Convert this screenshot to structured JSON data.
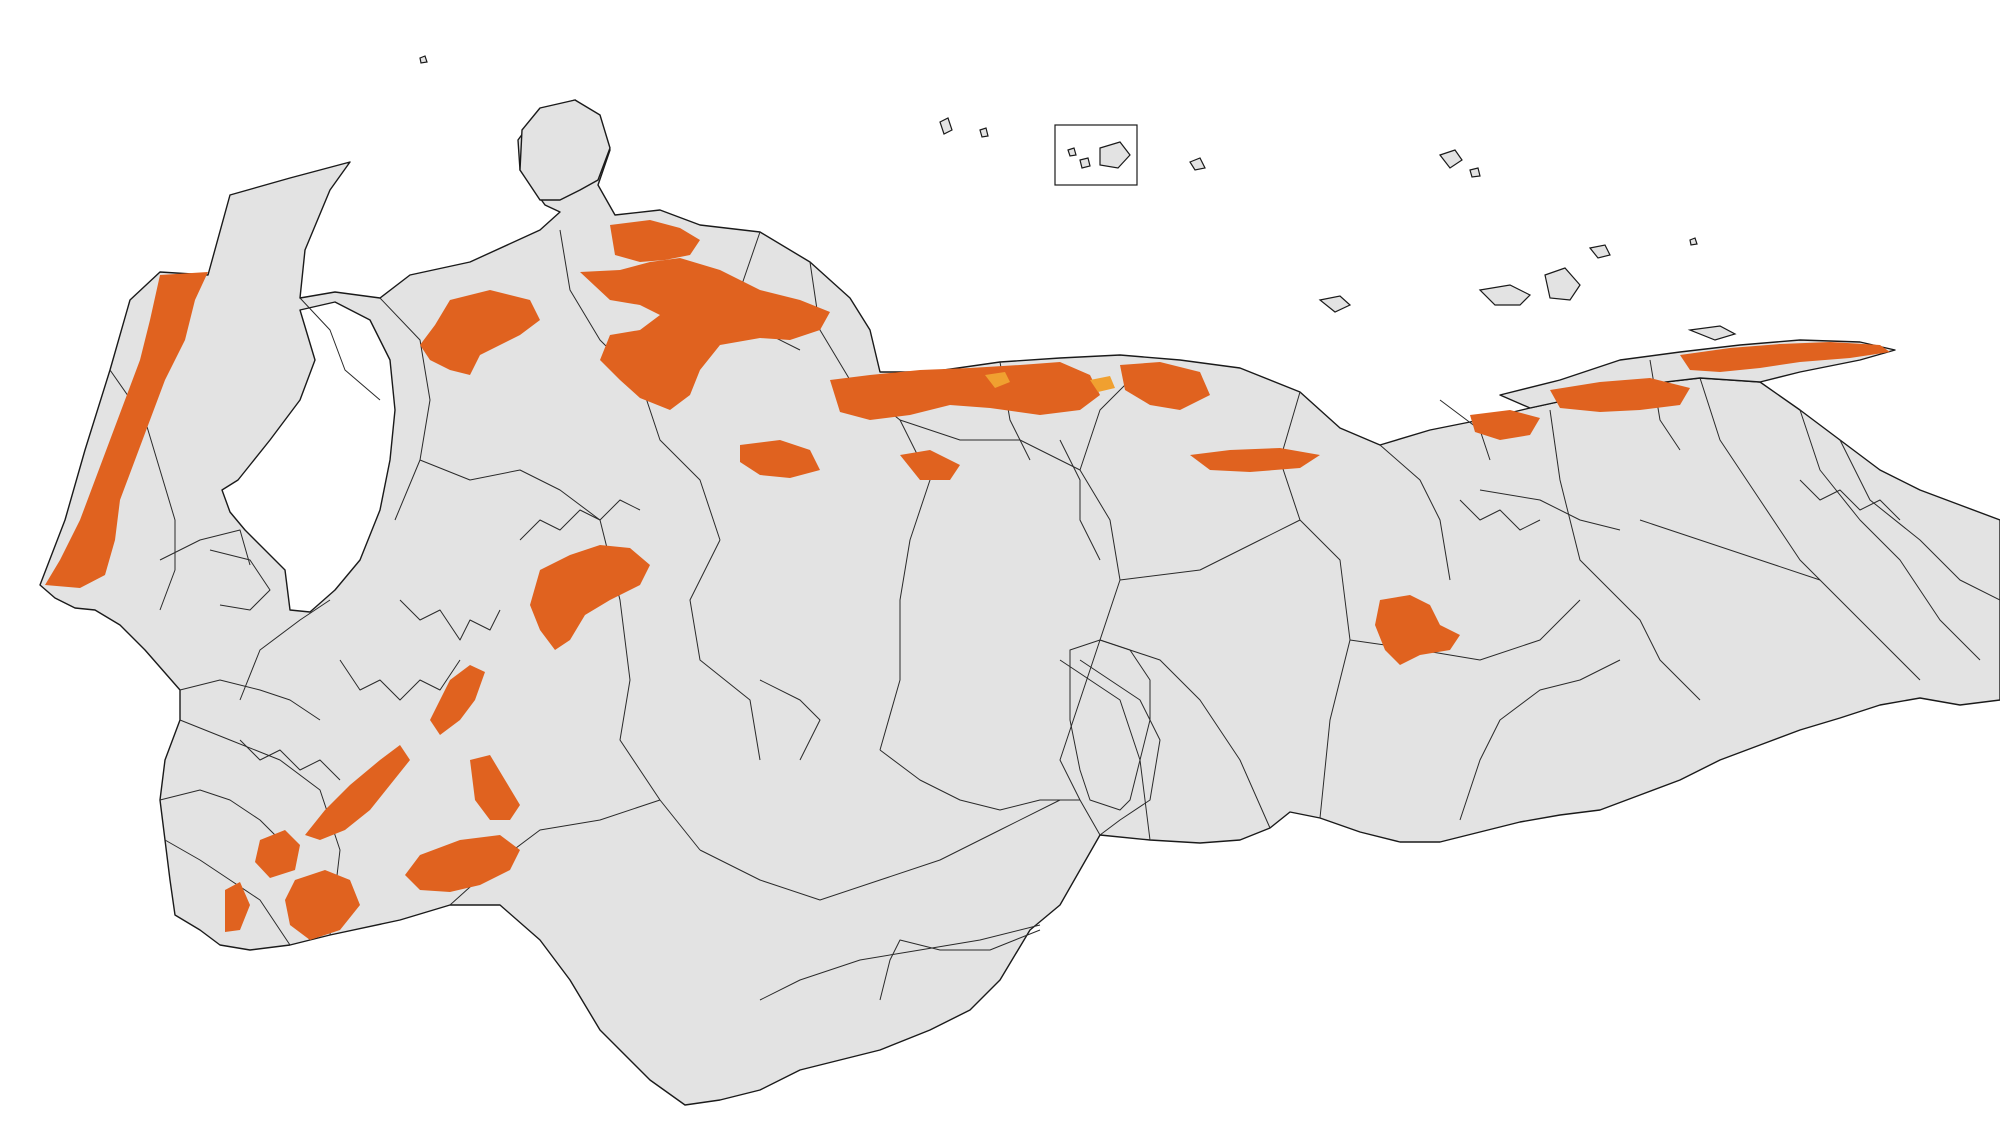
{
  "map": {
    "land_color": "#e3e3e3",
    "border_color": "#1a1a1a",
    "background_color": "#ffffff",
    "highlight_color": "#e0621f",
    "secondary_highlight_color": "#f0a030"
  }
}
